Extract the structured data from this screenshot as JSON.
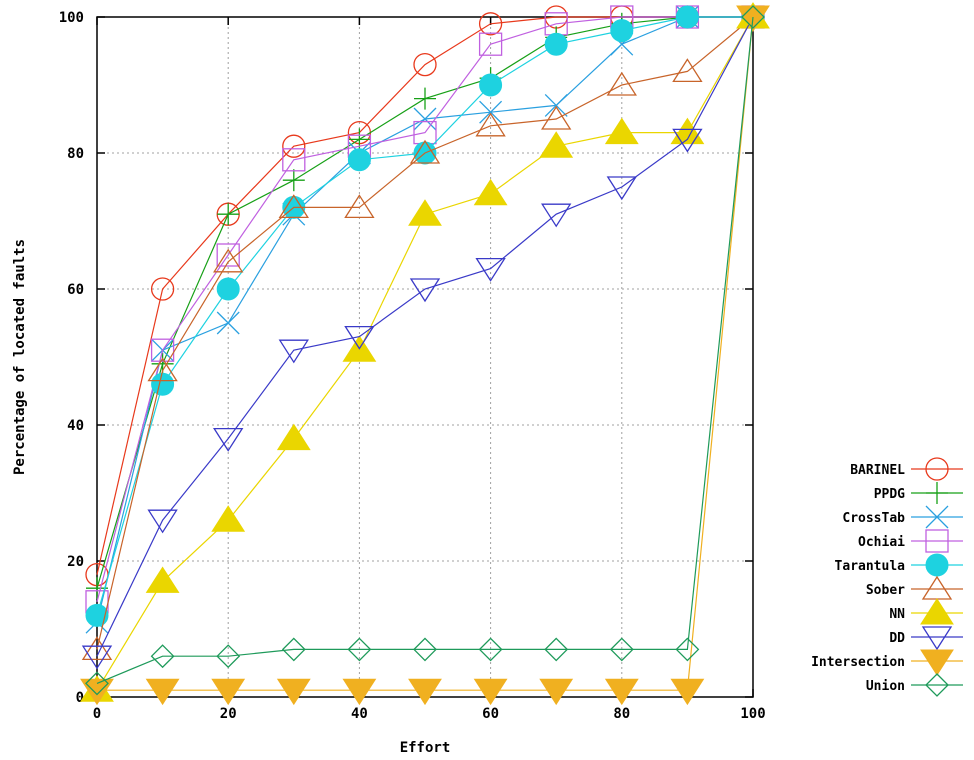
{
  "chart_data": {
    "type": "line",
    "title": "",
    "xlabel": "Effort",
    "ylabel": "Percentage of located faults",
    "xlim": [
      0,
      100
    ],
    "ylim": [
      0,
      100
    ],
    "xticks": [
      0,
      20,
      40,
      60,
      80,
      100
    ],
    "yticks": [
      0,
      20,
      40,
      60,
      80,
      100
    ],
    "grid": true,
    "legend_position": "right",
    "series": [
      {
        "name": "BARINEL",
        "color": "#e8391c",
        "marker": "circle-open",
        "x": [
          0,
          10,
          20,
          30,
          40,
          50,
          60,
          70,
          80,
          90,
          100
        ],
        "y": [
          18,
          60,
          71,
          81,
          83,
          93,
          99,
          100,
          100,
          100,
          100
        ]
      },
      {
        "name": "PPDG",
        "color": "#17a017",
        "marker": "plus",
        "x": [
          0,
          10,
          20,
          30,
          40,
          50,
          60,
          70,
          80,
          90,
          100
        ],
        "y": [
          16,
          49,
          71,
          76,
          82,
          88,
          91,
          97,
          99,
          100,
          100
        ]
      },
      {
        "name": "CrossTab",
        "color": "#2aa0e0",
        "marker": "cross",
        "x": [
          0,
          10,
          20,
          30,
          40,
          50,
          60,
          70,
          80,
          90,
          100
        ],
        "y": [
          11,
          51,
          55,
          71,
          80,
          85,
          86,
          87,
          96,
          100,
          100
        ]
      },
      {
        "name": "Ochiai",
        "color": "#c060e0",
        "marker": "square-open",
        "x": [
          0,
          10,
          20,
          30,
          40,
          50,
          60,
          70,
          80,
          90,
          100
        ],
        "y": [
          14,
          51,
          65,
          79,
          81,
          83,
          96,
          99,
          100,
          100,
          100
        ]
      },
      {
        "name": "Tarantula",
        "color": "#1ed2e0",
        "marker": "circle-filled",
        "x": [
          0,
          10,
          20,
          30,
          40,
          50,
          60,
          70,
          80,
          90,
          100
        ],
        "y": [
          12,
          46,
          60,
          72,
          79,
          80,
          90,
          96,
          98,
          100,
          100
        ]
      },
      {
        "name": "Sober",
        "color": "#c8642a",
        "marker": "triangle-open",
        "x": [
          0,
          10,
          20,
          30,
          40,
          50,
          60,
          70,
          80,
          90,
          100
        ],
        "y": [
          7,
          48,
          64,
          72,
          72,
          80,
          84,
          85,
          90,
          92,
          100
        ]
      },
      {
        "name": "NN",
        "color": "#ead600",
        "marker": "triangle-filled",
        "x": [
          0,
          10,
          20,
          30,
          40,
          50,
          60,
          70,
          80,
          90,
          100
        ],
        "y": [
          1,
          17,
          26,
          38,
          51,
          71,
          74,
          81,
          83,
          83,
          100
        ]
      },
      {
        "name": "DD",
        "color": "#3a3ac8",
        "marker": "triangle-down-open",
        "x": [
          0,
          10,
          20,
          30,
          40,
          50,
          60,
          70,
          80,
          90,
          100
        ],
        "y": [
          6,
          26,
          38,
          51,
          53,
          60,
          63,
          71,
          75,
          82,
          100
        ]
      },
      {
        "name": "Intersection",
        "color": "#f0b020",
        "marker": "triangle-down-filled",
        "x": [
          0,
          10,
          20,
          30,
          40,
          50,
          60,
          70,
          80,
          90,
          100
        ],
        "y": [
          1,
          1,
          1,
          1,
          1,
          1,
          1,
          1,
          1,
          1,
          100
        ]
      },
      {
        "name": "Union",
        "color": "#1e9a5a",
        "marker": "diamond-open",
        "x": [
          0,
          10,
          20,
          30,
          40,
          50,
          60,
          70,
          80,
          90,
          100
        ],
        "y": [
          2,
          6,
          6,
          7,
          7,
          7,
          7,
          7,
          7,
          7,
          100
        ]
      }
    ]
  }
}
